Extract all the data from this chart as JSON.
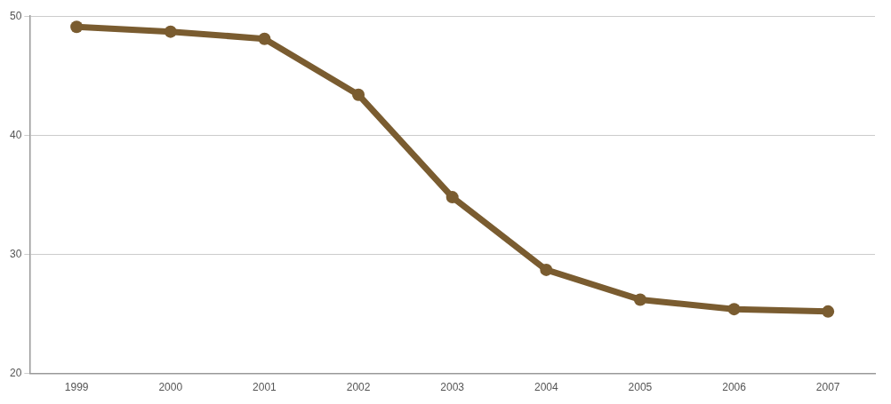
{
  "chart_data": {
    "type": "line",
    "categories": [
      "1999",
      "2000",
      "2001",
      "2002",
      "2003",
      "2004",
      "2005",
      "2006",
      "2007"
    ],
    "series": [
      {
        "color": "#7a5c30",
        "values": [
          49.1,
          48.7,
          48.1,
          43.4,
          34.8,
          28.7,
          26.2,
          25.4,
          25.2
        ]
      }
    ],
    "ylim": [
      20,
      50
    ],
    "yticks": [
      20,
      30,
      40,
      50
    ],
    "grid": "y",
    "marker": "circle",
    "line_style": "solid"
  }
}
